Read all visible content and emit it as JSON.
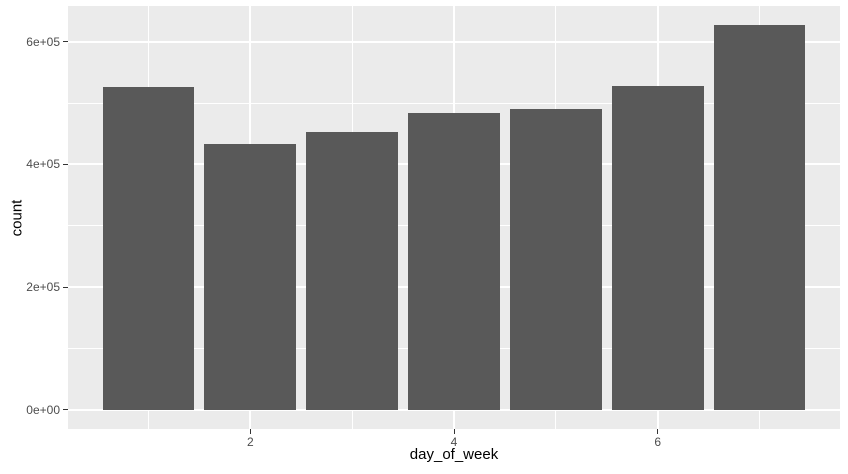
{
  "chart_data": {
    "type": "bar",
    "title": "",
    "xlabel": "day_of_week",
    "ylabel": "count",
    "x": [
      1,
      2,
      3,
      4,
      5,
      6,
      7
    ],
    "values": [
      527000,
      434000,
      453000,
      484000,
      491000,
      528000,
      628000
    ],
    "bar_width_x_units": 0.9,
    "xlim": [
      0.21,
      7.79
    ],
    "ylim": [
      -31350,
      658350
    ],
    "x_major_ticks": [
      {
        "value": 2,
        "label": "2"
      },
      {
        "value": 4,
        "label": "4"
      },
      {
        "value": 6,
        "label": "6"
      }
    ],
    "x_minor_gridlines": [
      1,
      3,
      5,
      7
    ],
    "y_major_ticks": [
      {
        "value": 0,
        "label": "0e+00"
      },
      {
        "value": 200000,
        "label": "2e+05"
      },
      {
        "value": 400000,
        "label": "4e+05"
      },
      {
        "value": 600000,
        "label": "6e+05"
      }
    ],
    "y_minor_gridlines": [
      100000,
      300000,
      500000
    ],
    "grid": true,
    "legend_position": "none",
    "theme": "ggplot2-grey",
    "colors": {
      "bar_fill": "#595959",
      "panel_background": "#EBEBEB",
      "gridline": "#FFFFFF",
      "tick_mark": "#333333",
      "tick_label": "#4D4D4D",
      "axis_title": "#000000",
      "page_background": "#FFFFFF"
    }
  }
}
